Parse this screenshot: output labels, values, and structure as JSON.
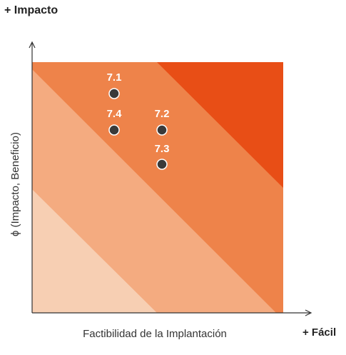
{
  "axes": {
    "top_label": "+ Impacto",
    "y_label": "ϕ (Impacto, Beneficio)",
    "x_label": "Factibilidad de la Implantación",
    "right_label": "+ Fácil"
  },
  "points": [
    {
      "label": "7.1"
    },
    {
      "label": "7.4"
    },
    {
      "label": "7.2"
    },
    {
      "label": "7.3"
    }
  ]
}
